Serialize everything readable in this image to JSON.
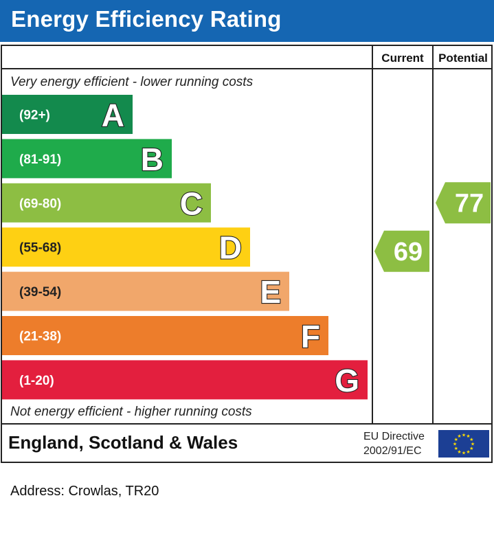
{
  "header": {
    "title": "Energy Efficiency Rating"
  },
  "columns": {
    "current": "Current",
    "potential": "Potential"
  },
  "captions": {
    "top": "Very energy efficient - lower running costs",
    "bottom": "Not energy efficient - higher running costs"
  },
  "chart_data": {
    "type": "bar",
    "title": "Energy Efficiency Rating",
    "bands": [
      {
        "letter": "A",
        "range": "(92+)",
        "color": "#138a4d"
      },
      {
        "letter": "B",
        "range": "(81-91)",
        "color": "#1fab4b"
      },
      {
        "letter": "C",
        "range": "(69-80)",
        "color": "#8dbe43"
      },
      {
        "letter": "D",
        "range": "(55-68)",
        "color": "#fed013"
      },
      {
        "letter": "E",
        "range": "(39-54)",
        "color": "#f1a76b"
      },
      {
        "letter": "F",
        "range": "(21-38)",
        "color": "#ed7d2b"
      },
      {
        "letter": "G",
        "range": "(1-20)",
        "color": "#e31f3e"
      }
    ],
    "ratings": [
      {
        "name": "Current",
        "value": 69,
        "band": "C",
        "color": "#8dbe43"
      },
      {
        "name": "Potential",
        "value": 77,
        "band": "C",
        "color": "#8dbe43"
      }
    ]
  },
  "footer": {
    "region": "England, Scotland & Wales",
    "eu_line1": "EU Directive",
    "eu_line2": "2002/91/EC",
    "eu_flag_color": "#1c3f94",
    "eu_star_color": "#ffdd00"
  },
  "address": "Address: Crowlas, TR20"
}
